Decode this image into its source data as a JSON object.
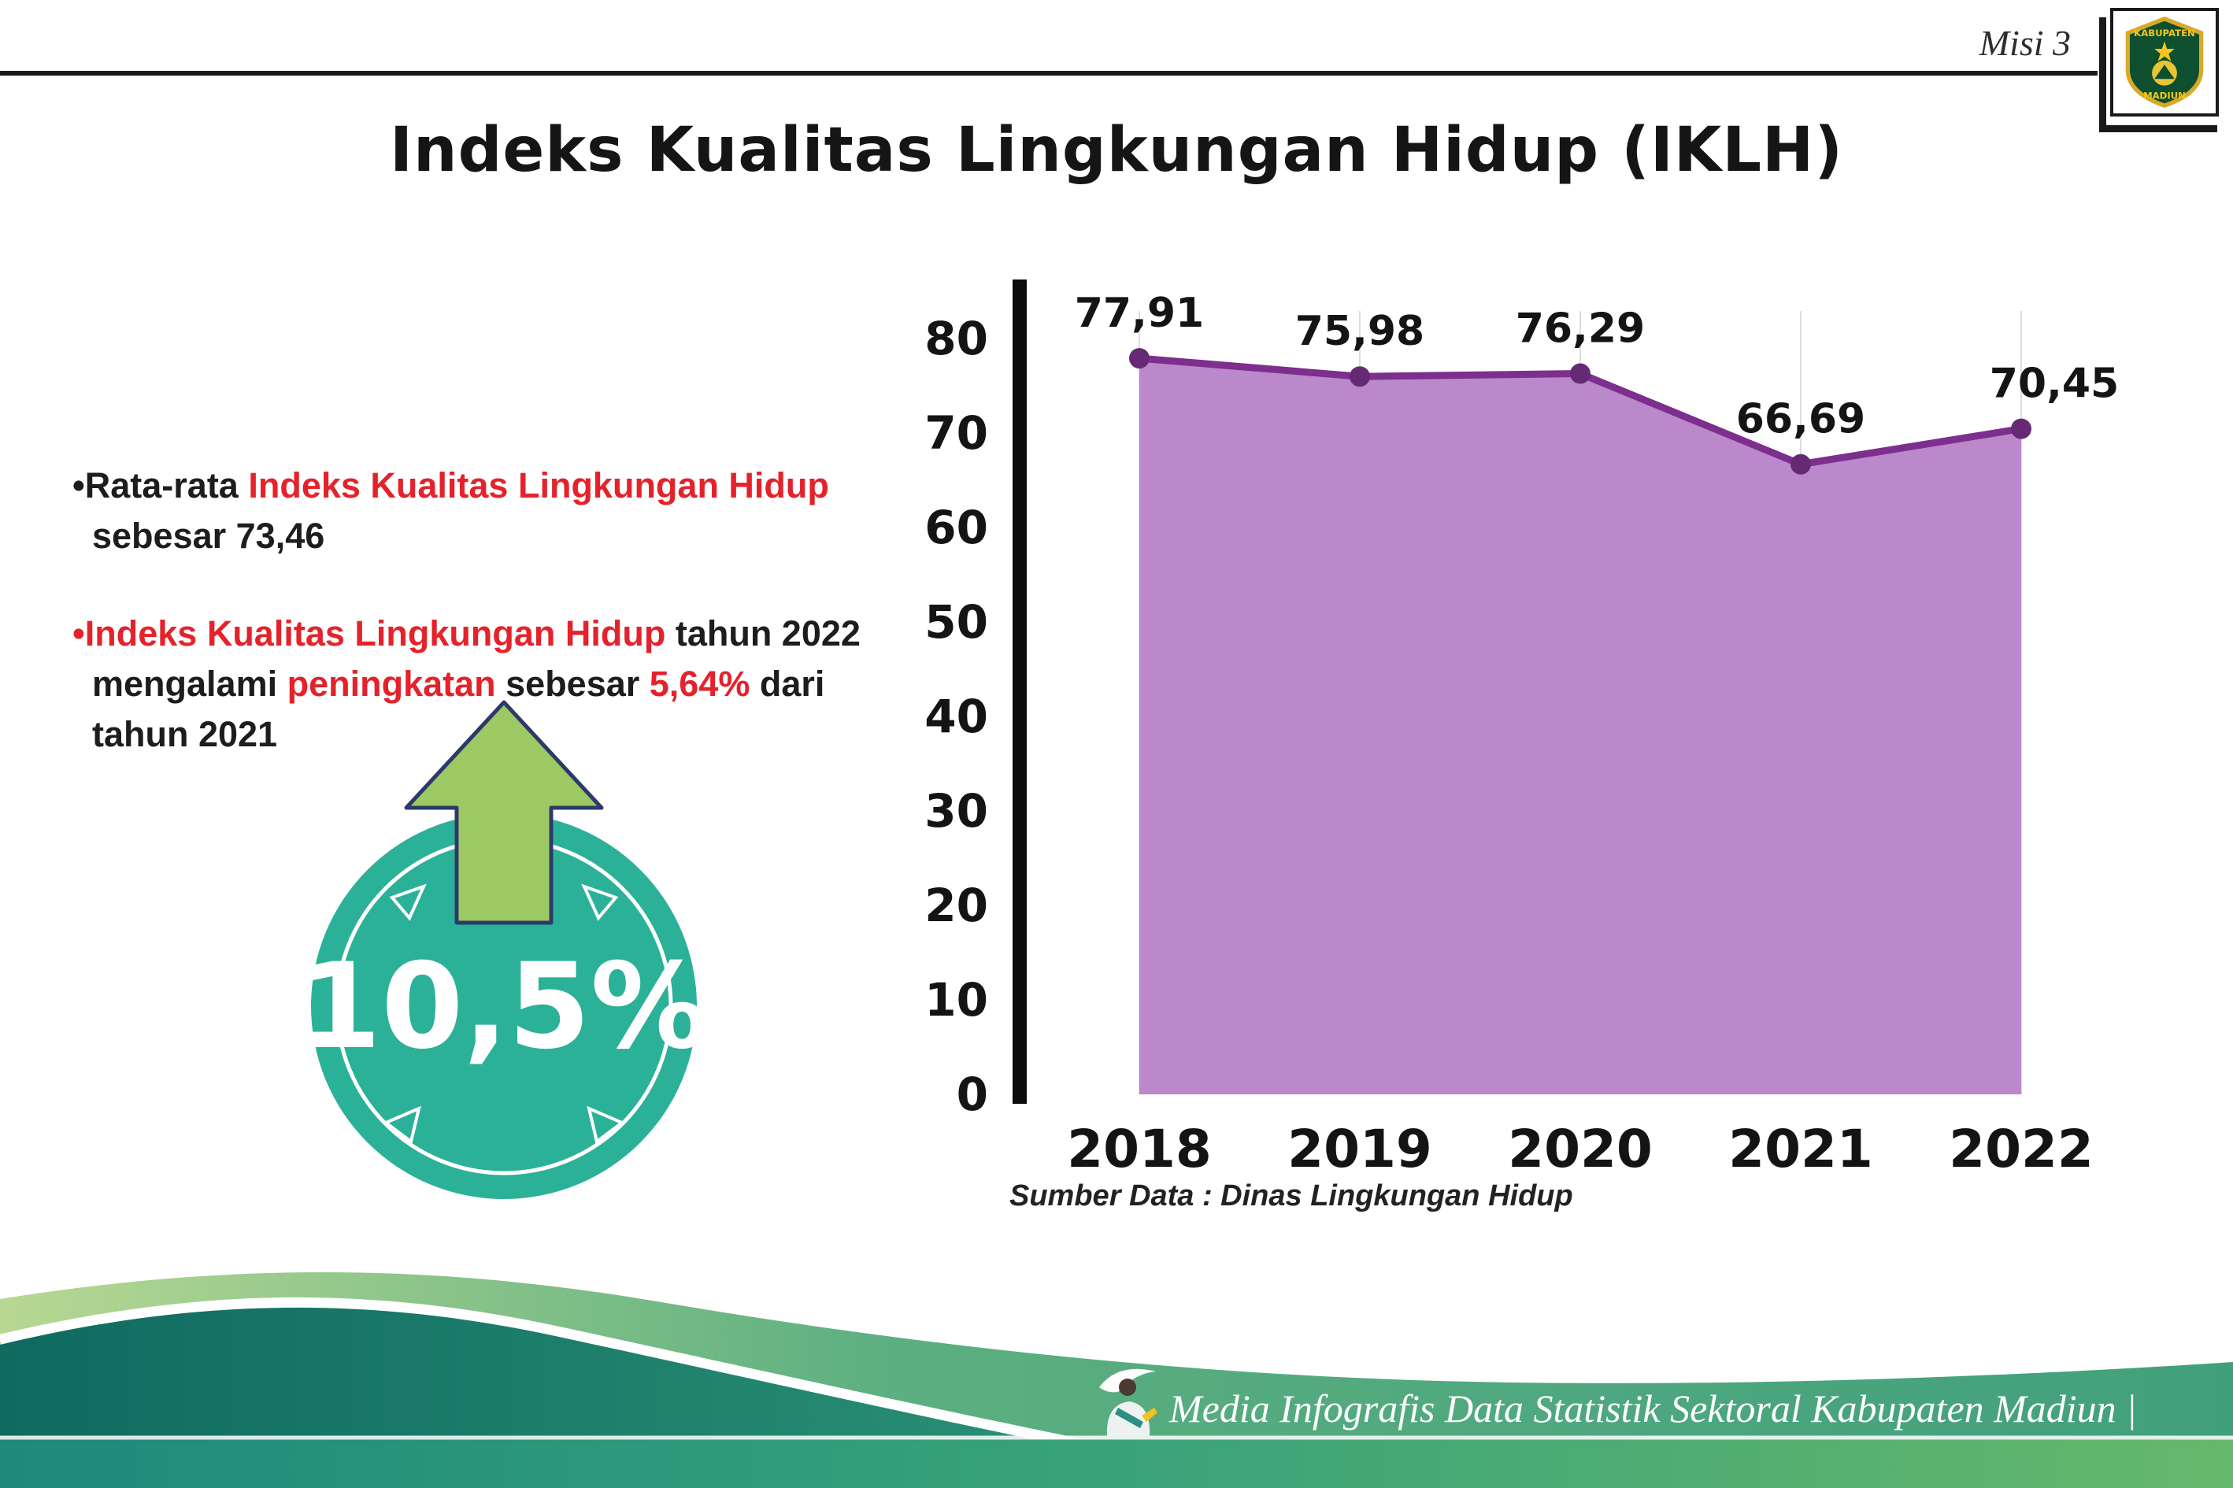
{
  "page": {
    "misi_label": "Misi 3",
    "title": "Indeks Kualitas Lingkungan Hidup (IKLH)",
    "source_note": "Sumber Data : Dinas Lingkungan Hidup",
    "footer_text": "Media Infografis Data Statistik Sektoral Kabupaten Madiun |"
  },
  "logo": {
    "top_text": "KABUPATEN",
    "bottom_text": "MADIUN"
  },
  "bullets": {
    "marker": "•",
    "b1": {
      "black1": "Rata-rata ",
      "red1": "Indeks Kualitas Lingkungan Hidup",
      "line2": "sebesar 73,46"
    },
    "b2": {
      "red1": "Indeks Kualitas Lingkungan Hidup",
      "black1": " tahun 2022",
      "line2_black1": "mengalami ",
      "line2_red1": "peningkatan",
      "line2_black2": " sebesar ",
      "line2_red2": "5,64%",
      "line2_black3": " dari",
      "line3": "tahun 2021"
    }
  },
  "badge": {
    "value": "10,5%"
  },
  "colors": {
    "red": "#e4222b",
    "teal": "#2cb199",
    "arrow_green": "#9cc963",
    "area": "#bb88cb",
    "line": "#7c2f8d",
    "point": "#662a74",
    "axis": "#0b0b0b"
  },
  "chart_data": {
    "type": "area",
    "title": "Indeks Kualitas Lingkungan Hidup (IKLH)",
    "categories": [
      "2018",
      "2019",
      "2020",
      "2021",
      "2022"
    ],
    "values": [
      77.91,
      75.98,
      76.29,
      66.69,
      70.45
    ],
    "value_labels": [
      "77,91",
      "75,98",
      "76,29",
      "66,69",
      "70,45"
    ],
    "xlabel": "",
    "ylabel": "",
    "ylim": [
      0,
      80
    ],
    "ytick_step": 10,
    "grid": "vertical-light",
    "legend": "none",
    "source": "Sumber Data : Dinas Lingkungan Hidup"
  }
}
